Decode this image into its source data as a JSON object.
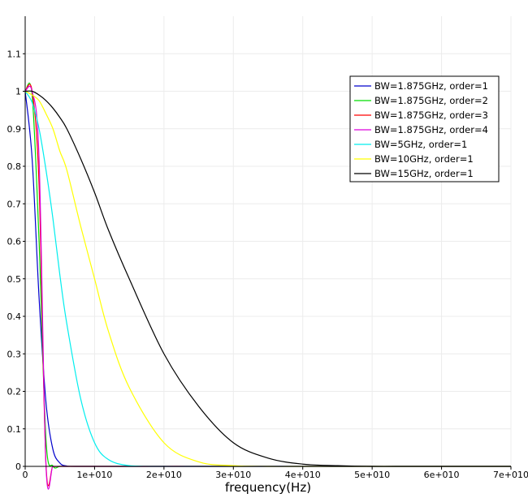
{
  "chart_data": {
    "type": "line",
    "title": "",
    "xlabel": "frequency(Hz)",
    "ylabel": "",
    "xlim": [
      0,
      70000000000
    ],
    "ylim": [
      0,
      1.2
    ],
    "grid": true,
    "legend_position": "top-right",
    "x_ticks": [
      {
        "value": 0,
        "label": "0"
      },
      {
        "value": 10000000000,
        "label": "1e+010"
      },
      {
        "value": 20000000000,
        "label": "2e+010"
      },
      {
        "value": 30000000000,
        "label": "3e+010"
      },
      {
        "value": 40000000000,
        "label": "4e+010"
      },
      {
        "value": 50000000000,
        "label": "5e+010"
      },
      {
        "value": 60000000000,
        "label": "6e+010"
      },
      {
        "value": 70000000000,
        "label": "7e+010"
      }
    ],
    "y_ticks": [
      {
        "value": 0,
        "label": "0"
      },
      {
        "value": 0.1,
        "label": "0.1"
      },
      {
        "value": 0.2,
        "label": "0.2"
      },
      {
        "value": 0.3,
        "label": "0.3"
      },
      {
        "value": 0.4,
        "label": "0.4"
      },
      {
        "value": 0.5,
        "label": "0.5"
      },
      {
        "value": 0.6,
        "label": "0.6"
      },
      {
        "value": 0.7,
        "label": "0.7"
      },
      {
        "value": 0.8,
        "label": "0.8"
      },
      {
        "value": 0.9,
        "label": "0.9"
      },
      {
        "value": 1.0,
        "label": "1"
      },
      {
        "value": 1.1,
        "label": "1.1"
      }
    ],
    "x": [
      0,
      1000000000,
      2000000000,
      3000000000,
      4000000000,
      5000000000,
      6000000000,
      8000000000,
      10000000000,
      12000000000,
      15000000000,
      20000000000,
      25000000000,
      30000000000,
      35000000000,
      40000000000,
      45000000000,
      50000000000,
      55000000000,
      60000000000,
      65000000000,
      70000000000
    ],
    "series": [
      {
        "name": "BW=1.875GHz, order=1",
        "color": "#0000cc",
        "values": [
          1.0,
          0.82,
          0.45,
          0.17,
          0.045,
          0.009,
          0.001,
          0.0,
          0.0,
          0.0,
          0.0,
          0.0,
          0.0,
          0.0,
          0.0,
          0.0,
          0.0,
          0.0,
          0.0,
          0.0,
          0.0,
          0.0
        ]
      },
      {
        "name": "BW=1.875GHz, order=2",
        "color": "#00dd00",
        "values": [
          1.0,
          0.99,
          0.6,
          0.07,
          0.001,
          0.0,
          0.0,
          0.0,
          0.0,
          0.0,
          0.0,
          0.0,
          0.0,
          0.0,
          0.0,
          0.0,
          0.0,
          0.0,
          0.0,
          0.0,
          0.0,
          0.0
        ]
      },
      {
        "name": "BW=1.875GHz, order=3",
        "color": "#ff0000",
        "values": [
          1.0,
          1.0,
          0.75,
          0.005,
          0.0,
          0.0,
          0.0,
          0.0,
          0.0,
          0.0,
          0.0,
          0.0,
          0.0,
          0.0,
          0.0,
          0.0,
          0.0,
          0.0,
          0.0,
          0.0,
          0.0,
          0.0
        ]
      },
      {
        "name": "BW=1.875GHz, order=4",
        "color": "#dd00dd",
        "values": [
          1.0,
          1.0,
          0.82,
          0.0,
          0.0,
          0.0,
          0.0,
          0.0,
          0.0,
          0.0,
          0.0,
          0.0,
          0.0,
          0.0,
          0.0,
          0.0,
          0.0,
          0.0,
          0.0,
          0.0,
          0.0,
          0.0
        ]
      },
      {
        "name": "BW=5GHz, order=1",
        "color": "#00eeee",
        "values": [
          1.0,
          0.97,
          0.9,
          0.79,
          0.66,
          0.51,
          0.38,
          0.18,
          0.063,
          0.018,
          0.002,
          0.0,
          0.0,
          0.0,
          0.0,
          0.0,
          0.0,
          0.0,
          0.0,
          0.0,
          0.0,
          0.0
        ]
      },
      {
        "name": "BW=10GHz, order=1",
        "color": "#ffff00",
        "values": [
          1.0,
          0.99,
          0.975,
          0.94,
          0.9,
          0.84,
          0.79,
          0.64,
          0.5,
          0.36,
          0.21,
          0.063,
          0.012,
          0.002,
          0.0,
          0.0,
          0.0,
          0.0,
          0.0,
          0.0,
          0.0,
          0.0
        ]
      },
      {
        "name": "BW=15GHz, order=1",
        "color": "#000000",
        "values": [
          1.0,
          1.0,
          0.99,
          0.975,
          0.955,
          0.93,
          0.9,
          0.82,
          0.73,
          0.63,
          0.5,
          0.3,
          0.16,
          0.063,
          0.022,
          0.006,
          0.002,
          0.0,
          0.0,
          0.0,
          0.0,
          0.0
        ]
      }
    ]
  }
}
